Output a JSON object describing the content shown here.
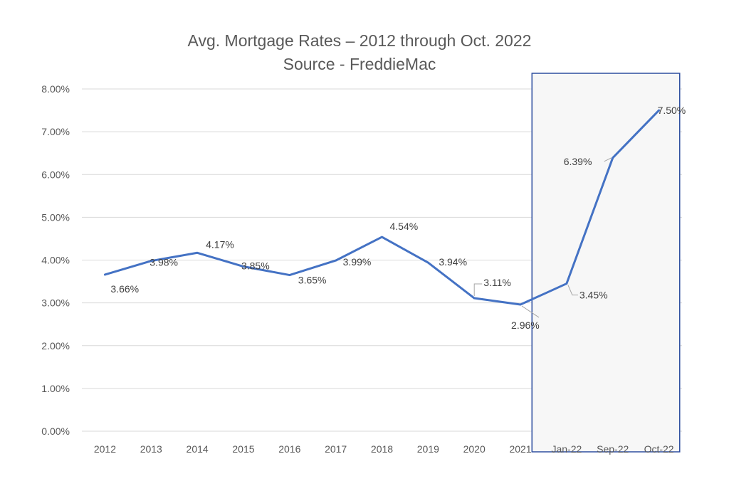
{
  "chart_data": {
    "type": "line",
    "title": "Avg. Mortgage Rates – 2012 through Oct. 2022",
    "subtitle": "Source - FreddieMac",
    "categories": [
      "2012",
      "2013",
      "2014",
      "2015",
      "2016",
      "2017",
      "2018",
      "2019",
      "2020",
      "2021",
      "Jan-22",
      "Sep-22",
      "Oct-22"
    ],
    "values": [
      3.66,
      3.98,
      4.17,
      3.85,
      3.65,
      3.99,
      4.54,
      3.94,
      3.11,
      2.96,
      3.45,
      6.39,
      7.5
    ],
    "data_labels": [
      "3.66%",
      "3.98%",
      "4.17%",
      "3.85%",
      "3.65%",
      "3.99%",
      "4.54%",
      "3.94%",
      "3.11%",
      "2.96%",
      "3.45%",
      "6.39%",
      "7.50%"
    ],
    "y_ticks": [
      "0.00%",
      "1.00%",
      "2.00%",
      "3.00%",
      "4.00%",
      "5.00%",
      "6.00%",
      "7.00%",
      "8.00%"
    ],
    "ylim": [
      0,
      8
    ],
    "grid": true,
    "line_color": "#4472c4",
    "highlight_box": {
      "from_category": "Jan-22",
      "to_category": "Oct-22",
      "border_color": "#2f4f9f",
      "fill_color": "#f7f7f7"
    }
  }
}
